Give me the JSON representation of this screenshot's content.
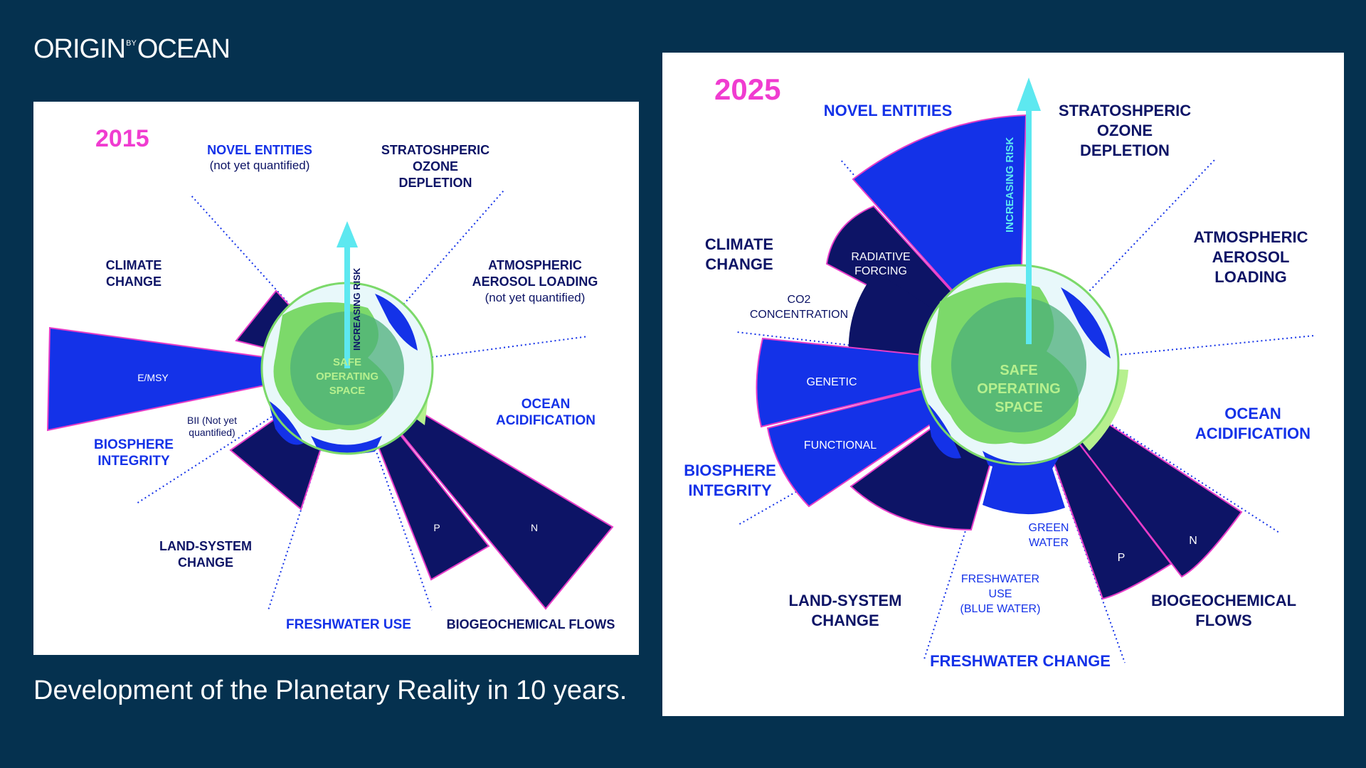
{
  "brand": {
    "name_left": "ORIGIN",
    "name_sup": "BY",
    "name_right": "OCEAN"
  },
  "caption": "Development of the Planetary Reality in 10 years.",
  "colors": {
    "background": "#05314F",
    "year": "#F03CD0",
    "royal_blue": "#1432E8",
    "navy": "#0D1466",
    "arrow": "#5DE8F0",
    "safe_green": "#7CD96A",
    "outline": "#E63CC8"
  },
  "panel_2015": {
    "year": "2015",
    "arrow_label": "INCREASING RISK",
    "center": [
      "SAFE",
      "OPERATING",
      "SPACE"
    ],
    "labels": {
      "novel_entities": "NOVEL ENTITIES",
      "novel_entities_note": "(not yet quantified)",
      "ozone": [
        "STRATOSHPERIC",
        "OZONE",
        "DEPLETION"
      ],
      "climate": [
        "CLIMATE",
        "CHANGE"
      ],
      "aerosol": [
        "ATMOSPHERIC",
        "AEROSOL LOADING"
      ],
      "aerosol_note": "(not yet quantified)",
      "ocean": [
        "OCEAN",
        "ACIDIFICATION"
      ],
      "biosphere": [
        "BIOSPHERE",
        "INTEGRITY"
      ],
      "bii": [
        "BII (Not yet",
        "quantified)"
      ],
      "emsy": "E/MSY",
      "land": [
        "LAND-SYSTEM",
        "CHANGE"
      ],
      "freshwater": "FRESHWATER USE",
      "biogeo": "BIOGEOCHEMICAL FLOWS",
      "p": "P",
      "n": "N"
    }
  },
  "panel_2025": {
    "year": "2025",
    "arrow_label": "INCREASING RISK",
    "center": [
      "SAFE",
      "OPERATING",
      "SPACE"
    ],
    "labels": {
      "novel_entities": "NOVEL ENTITIES",
      "ozone": [
        "STRATOSHPERIC",
        "OZONE",
        "DEPLETION"
      ],
      "climate": [
        "CLIMATE",
        "CHANGE"
      ],
      "radiative": [
        "RADIATIVE",
        "FORCING"
      ],
      "co2": [
        "CO2",
        "CONCENTRATION"
      ],
      "aerosol": [
        "ATMOSPHERIC",
        "AEROSOL",
        "LOADING"
      ],
      "ocean": [
        "OCEAN",
        "ACIDIFICATION"
      ],
      "genetic": "GENETIC",
      "functional": "FUNCTIONAL",
      "biosphere": [
        "BIOSPHERE",
        "INTEGRITY"
      ],
      "land": [
        "LAND-SYSTEM",
        "CHANGE"
      ],
      "green_water": [
        "GREEN",
        "WATER"
      ],
      "blue_water": [
        "FRESHWATER",
        "USE",
        "(BLUE WATER)"
      ],
      "freshwater_change": "FRESHWATER CHANGE",
      "biogeo": [
        "BIOGEOCHEMICAL",
        "FLOWS"
      ],
      "p": "P",
      "n": "N"
    }
  }
}
